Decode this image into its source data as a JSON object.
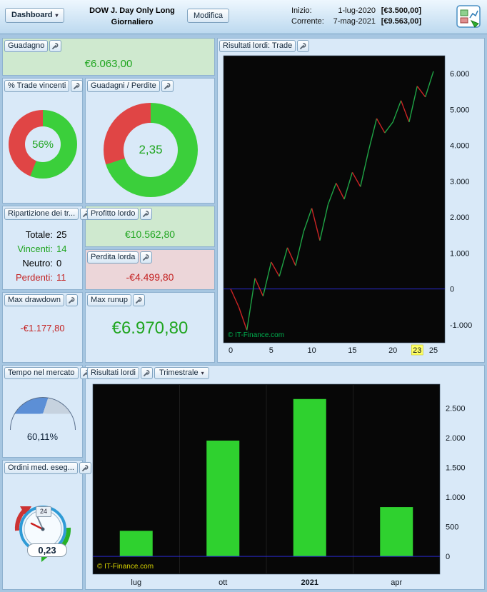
{
  "ui": {
    "caret": "▾"
  },
  "colors": {
    "positive": "#1fa51f",
    "negative": "#c42222",
    "win_slice": "#3bcf3b",
    "loss_slice": "#e04545",
    "gauge_fill": "#5c8fd6",
    "gauge_rest": "#c6d2df",
    "panel_green_bg": "#cfe9cf",
    "panel_red_bg": "#ecd6d9"
  },
  "topbar": {
    "dashboard_label": "Dashboard",
    "title_line1": "DOW J. Day Only Long",
    "title_line2": "Giornaliero",
    "modifica_label": "Modifica",
    "rows": [
      {
        "label": "Inizio:",
        "date": "1-lug-2020",
        "value": "[€3.500,00]"
      },
      {
        "label": "Corrente:",
        "date": "7-mag-2021",
        "value": "[€9.563,00]"
      }
    ]
  },
  "panels": {
    "guadagno": {
      "title": "Guadagno",
      "value": "€6.063,00"
    },
    "trade_vincenti": {
      "title": "% Trade vincenti",
      "value": "56%",
      "win_pct": 56
    },
    "guadagni_perdite": {
      "title": "Guadagni / Perdite",
      "value": "2,35",
      "green_pct": 70
    },
    "ripartizione": {
      "title": "Ripartizione dei tr...",
      "rows": [
        {
          "label": "Totale:",
          "value": "25",
          "color": "#000000"
        },
        {
          "label": "Vincenti:",
          "value": "14",
          "color": "#1fa51f"
        },
        {
          "label": "Neutro:",
          "value": "0",
          "color": "#000000"
        },
        {
          "label": "Perdenti:",
          "value": "11",
          "color": "#c42222"
        }
      ]
    },
    "profitto_lordo": {
      "title": "Profitto lordo",
      "value": "€10.562,80"
    },
    "perdita_lorda": {
      "title": "Perdita lorda",
      "value": "-€4.499,80"
    },
    "max_drawdown": {
      "title": "Max drawdown",
      "value": "-€1.177,80"
    },
    "max_runup": {
      "title": "Max runup",
      "value": "€6.970,80"
    },
    "tempo_mercato": {
      "title": "Tempo nel mercato",
      "value": "60,11%",
      "gauge_pct": 60.11
    },
    "ordini": {
      "title": "Ordini med. eseg...",
      "value": "0,23",
      "badge": "24"
    }
  },
  "chart_data": [
    {
      "type": "line",
      "title": "Risultati lordi: Trade",
      "x": [
        0,
        1,
        2,
        3,
        4,
        5,
        6,
        7,
        8,
        9,
        10,
        11,
        12,
        13,
        14,
        15,
        16,
        17,
        18,
        19,
        20,
        21,
        22,
        23,
        24,
        25
      ],
      "values": [
        0,
        -500,
        -1150,
        300,
        -200,
        750,
        350,
        1150,
        650,
        1600,
        2250,
        1350,
        2350,
        2950,
        2500,
        3250,
        2850,
        3850,
        4750,
        4350,
        4650,
        5250,
        4650,
        5650,
        5350,
        6063
      ],
      "ylim": [
        -1500,
        6500
      ],
      "yticks": [
        {
          "v": 6000,
          "label": "6.000"
        },
        {
          "v": 5000,
          "label": "5.000"
        },
        {
          "v": 4000,
          "label": "4.000"
        },
        {
          "v": 3000,
          "label": "3.000"
        },
        {
          "v": 2000,
          "label": "2.000"
        },
        {
          "v": 1000,
          "label": "1.000"
        },
        {
          "v": 0,
          "label": "0"
        },
        {
          "v": -1000,
          "label": "-1.000"
        }
      ],
      "xticks": [
        {
          "v": 0,
          "label": "0"
        },
        {
          "v": 5,
          "label": "5"
        },
        {
          "v": 10,
          "label": "10"
        },
        {
          "v": 15,
          "label": "15"
        },
        {
          "v": 20,
          "label": "20"
        },
        {
          "v": 23,
          "label": "23",
          "highlight": true
        },
        {
          "v": 25,
          "label": "25"
        }
      ],
      "highlight_bg": "#ffff66",
      "up_color": "#1fa546",
      "down_color": "#cc2424",
      "zero_line_color": "#2a2acc",
      "bg": "#070707",
      "grid": false,
      "watermark": "© IT-Finance.com",
      "watermark_color": "#00b14f"
    },
    {
      "type": "bar",
      "title": "Risultati lordi",
      "period": "Trimestrale",
      "categories": [
        "lug",
        "ott",
        "2021",
        "apr"
      ],
      "bold_category": "2021",
      "values": [
        430,
        1950,
        2650,
        830
      ],
      "ylim": [
        -300,
        2900
      ],
      "yticks": [
        {
          "v": 2500,
          "label": "2.500"
        },
        {
          "v": 2000,
          "label": "2.000"
        },
        {
          "v": 1500,
          "label": "1.500"
        },
        {
          "v": 1000,
          "label": "1.000"
        },
        {
          "v": 500,
          "label": "500"
        },
        {
          "v": 0,
          "label": "0"
        }
      ],
      "bar_color": "#2fd12f",
      "zero_line_color": "#2a2acc",
      "bg": "#070707",
      "grid": true,
      "watermark": "© IT-Finance.com",
      "watermark_color": "#d8d400"
    }
  ]
}
